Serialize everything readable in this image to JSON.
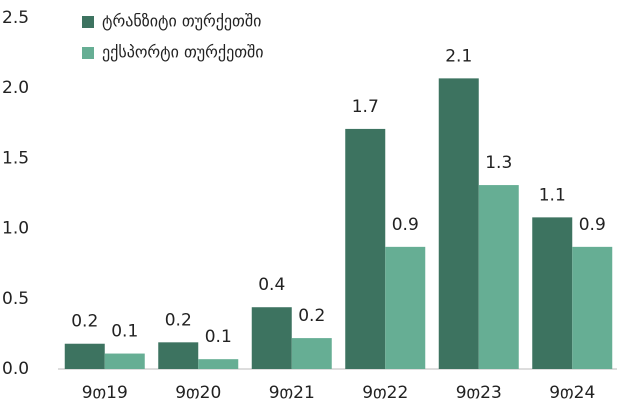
{
  "chart_data": {
    "type": "bar",
    "categories": [
      "9თ19",
      "9თ20",
      "9თ21",
      "9თ22",
      "9თ23",
      "9თ24"
    ],
    "series": [
      {
        "name": "ტრანზიტი თურქეთში",
        "color": "#3d7360",
        "values": [
          0.18,
          0.19,
          0.44,
          1.71,
          2.07,
          1.08
        ],
        "value_labels": [
          "0.2",
          "0.2",
          "0.4",
          "1.7",
          "2.1",
          "1.1"
        ]
      },
      {
        "name": "ექსპორტი თურქეთში",
        "color": "#66ae94",
        "values": [
          0.11,
          0.07,
          0.22,
          0.87,
          1.31,
          0.87
        ],
        "value_labels": [
          "0.1",
          "0.1",
          "0.2",
          "0.9",
          "1.3",
          "0.9"
        ]
      }
    ],
    "ylim": [
      0,
      2.5
    ],
    "yticks": [
      {
        "value": 0,
        "label": "0.0"
      },
      0.5,
      {
        "value": 1,
        "label": "1.0"
      },
      1.5,
      {
        "value": 2,
        "label": "2.0"
      },
      2.5
    ],
    "legend": "top-left",
    "grid": false
  }
}
